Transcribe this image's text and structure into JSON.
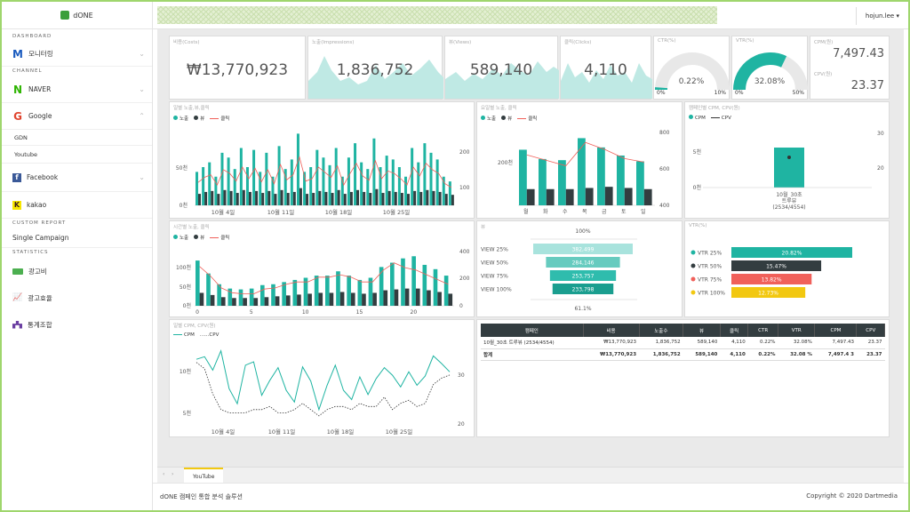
{
  "app": {
    "logo": "dONE",
    "user": "hojun.lee"
  },
  "sidebar": {
    "sections": {
      "dashboard": "DASHBOARD",
      "channel": "CHANNEL",
      "custom": "CUSTOM REPORT",
      "statistics": "STATISTICS"
    },
    "monitoring": "모니터링",
    "naver": "NAVER",
    "google": "Google",
    "gdn": "GDN",
    "youtube": "Youtube",
    "facebook": "Facebook",
    "kakao": "kakao",
    "single": "Single Campaign",
    "ad_cost": "광고비",
    "ad_eff": "광고효율",
    "stats": "통계조합"
  },
  "kpi": {
    "cost": {
      "title": "비용(Costs)",
      "value": "₩13,770,923"
    },
    "impr": {
      "title": "노출(Impressions)",
      "value": "1,836,752"
    },
    "views": {
      "title": "뷰(Views)",
      "value": "589,140"
    },
    "clicks": {
      "title": "클릭(Clicks)",
      "value": "4,110"
    },
    "ctr": {
      "title": "CTR(%)",
      "value": "0.22%",
      "min": "0%",
      "max": "10%",
      "level_pct": 0.22,
      "level_max": 10
    },
    "vtr": {
      "title": "VTR(%)",
      "value": "32.08%",
      "min": "0%",
      "max": "50%",
      "level_pct": 32.08,
      "level_max": 50
    },
    "cpm": {
      "title": "CPM(원)",
      "value": "7,497.43",
      "cpv_title": "CPV(원)",
      "cpv_value": "23.37"
    }
  },
  "legend": {
    "impr": "노출",
    "view": "뷰",
    "click": "클릭",
    "cpm": "CPM",
    "cpv": "CPV",
    "dots": "......"
  },
  "charts": {
    "daily_title": "일별 노출,뷰,클릭",
    "dow_title": "요일별 노출, 클릭",
    "campaign_title": "캠페인별 CPM, CPV(원)",
    "hourly_title": "시간별 노출, 클릭",
    "funnel_title": "뷰",
    "vtr_title": "VTR(%)",
    "daily_cpm_title": "일별 CPM, CPV(원)"
  },
  "chart_data": [
    {
      "type": "bar",
      "title": "일별 노출,뷰,클릭",
      "categories_label": [
        "10월 4일",
        "10월 11일",
        "10월 18일",
        "10월 25일"
      ],
      "yleft_ticks": [
        "0천",
        "50천"
      ],
      "yright_ticks": [
        "100",
        "200"
      ],
      "series": [
        {
          "name": "노출",
          "values": [
            35,
            40,
            45,
            30,
            55,
            50,
            38,
            60,
            40,
            58,
            35,
            55,
            30,
            62,
            38,
            48,
            75,
            35,
            40,
            58,
            50,
            42,
            60,
            30,
            50,
            65,
            45,
            38,
            70,
            40,
            52,
            48,
            40,
            30,
            60,
            45,
            65,
            55,
            48,
            30,
            25
          ]
        },
        {
          "name": "뷰",
          "values": [
            12,
            14,
            15,
            12,
            16,
            15,
            13,
            16,
            14,
            15,
            13,
            15,
            12,
            16,
            13,
            14,
            18,
            12,
            13,
            15,
            14,
            13,
            16,
            12,
            14,
            16,
            14,
            13,
            17,
            13,
            15,
            14,
            13,
            12,
            15,
            14,
            16,
            15,
            14,
            12,
            11
          ]
        },
        {
          "name": "클릭",
          "values": [
            90,
            110,
            120,
            80,
            140,
            125,
            95,
            150,
            105,
            145,
            92,
            140,
            85,
            160,
            100,
            120,
            190,
            95,
            105,
            150,
            130,
            110,
            155,
            80,
            125,
            165,
            115,
            98,
            175,
            105,
            135,
            125,
            105,
            80,
            150,
            115,
            165,
            140,
            125,
            85,
            70
          ]
        }
      ]
    },
    {
      "type": "bar",
      "title": "요일별 노출, 클릭",
      "categories": [
        "월",
        "화",
        "수",
        "목",
        "금",
        "토",
        "일"
      ],
      "yleft_ticks": [
        "200천"
      ],
      "yright_ticks": [
        "400",
        "600",
        "800"
      ],
      "series": [
        {
          "name": "노출",
          "values": [
            240,
            200,
            195,
            290,
            250,
            215,
            190
          ]
        },
        {
          "name": "뷰",
          "values": [
            70,
            70,
            70,
            75,
            80,
            75,
            70
          ]
        },
        {
          "name": "클릭",
          "values": [
            560,
            500,
            440,
            700,
            620,
            520,
            480
          ]
        }
      ]
    },
    {
      "type": "bar",
      "title": "캠페인별 CPM, CPV(원)",
      "categories": [
        "10월_30초 트루뷰 (2534/4554)"
      ],
      "category_lines": [
        "10월_30초",
        "트루뷰",
        "(2534/4554)"
      ],
      "yleft_ticks": [
        "0천",
        "5천"
      ],
      "yright_ticks": [
        "20",
        "30"
      ],
      "series": [
        {
          "name": "CPM",
          "values": [
            7497.43
          ]
        },
        {
          "name": "CPV",
          "values": [
            23.37
          ]
        }
      ]
    },
    {
      "type": "bar",
      "title": "시간별 노출, 클릭",
      "x_ticks": [
        "0",
        "5",
        "10",
        "15",
        "20"
      ],
      "yleft_ticks": [
        "0천",
        "50천",
        "100천"
      ],
      "yright_ticks": [
        "0",
        "200",
        "400"
      ],
      "series": [
        {
          "name": "노출",
          "values": [
            105,
            75,
            50,
            40,
            38,
            40,
            48,
            50,
            55,
            60,
            65,
            70,
            70,
            80,
            70,
            60,
            65,
            90,
            100,
            110,
            115,
            95,
            85,
            70
          ]
        },
        {
          "name": "뷰",
          "values": [
            30,
            25,
            20,
            18,
            18,
            18,
            20,
            22,
            24,
            26,
            28,
            30,
            30,
            32,
            30,
            28,
            30,
            36,
            38,
            40,
            40,
            36,
            32,
            28
          ]
        },
        {
          "name": "클릭",
          "values": [
            330,
            250,
            150,
            110,
            100,
            100,
            140,
            150,
            180,
            200,
            200,
            240,
            240,
            260,
            240,
            200,
            200,
            300,
            360,
            320,
            300,
            260,
            220,
            180
          ]
        }
      ]
    },
    {
      "type": "bar",
      "title": "뷰",
      "top_label": "100%",
      "bottom_label": "61.1%",
      "categories": [
        "VIEW 25%",
        "VIEW 50%",
        "VIEW 75%",
        "VIEW 100%"
      ],
      "values": [
        382499,
        284146,
        253757,
        233798
      ],
      "value_labels": [
        "382,499",
        "284,146",
        "253,757",
        "233,798"
      ]
    },
    {
      "type": "bar",
      "title": "VTR(%)",
      "categories": [
        "VTR 25%",
        "VTR 50%",
        "VTR 75%",
        "VTR 100%"
      ],
      "values": [
        20.82,
        15.47,
        13.82,
        12.73
      ],
      "value_labels": [
        "20.82%",
        "15.47%",
        "13.82%",
        "12.73%"
      ],
      "colors": [
        "#1fb4a2",
        "#333d40",
        "#f0605a",
        "#f2c811"
      ]
    },
    {
      "type": "line",
      "title": "일별 CPM, CPV(원)",
      "categories_label": [
        "10월 4일",
        "10월 11일",
        "10월 18일",
        "10월 25일"
      ],
      "yleft_ticks": [
        "5천",
        "10천"
      ],
      "yright_ticks": [
        "20",
        "30"
      ],
      "series": [
        {
          "name": "CPM",
          "values": [
            10.5,
            10.8,
            9.2,
            11.5,
            7.0,
            5.2,
            9.8,
            10.2,
            6.2,
            8.0,
            9.5,
            6.8,
            5.4,
            9.6,
            7.9,
            4.5,
            7.4,
            9.8,
            6.8,
            5.7,
            8.4,
            6.3,
            8.2,
            9.5,
            8.6,
            7.2,
            9.0,
            7.4,
            8.5,
            10.9,
            10.0,
            9.0
          ]
        },
        {
          "name": "CPV",
          "values": [
            28.5,
            27.5,
            23.5,
            21,
            20.5,
            20.5,
            20.5,
            21,
            21,
            21.5,
            20.5,
            20.5,
            21,
            22,
            21,
            20,
            21,
            21.5,
            21.5,
            21,
            22,
            21.5,
            21.5,
            23,
            21,
            22,
            22.5,
            21.5,
            22,
            25,
            26,
            26.5
          ]
        }
      ]
    }
  ],
  "table": {
    "headers": [
      "캠페인",
      "비용",
      "노출수",
      "뷰",
      "클릭",
      "CTR",
      "VTR",
      "CPM",
      "CPV"
    ],
    "rows": [
      [
        "10월_30초 트루뷰 (2534/4554)",
        "₩13,770,923",
        "1,836,752",
        "589,140",
        "4,110",
        "0.22%",
        "32.08%",
        "7,497.43",
        "23.37"
      ]
    ],
    "total": [
      "합계",
      "₩13,770,923",
      "1,836,752",
      "589,140",
      "4,110",
      "0.22%",
      "32.08 %",
      "7,497.4 3",
      "23.37"
    ]
  },
  "tabs": {
    "active": "YouTube"
  },
  "footer": {
    "left": "dONE 캠페인 통합 분석 솔루션",
    "right": "Copyright © 2020 Dartmedia"
  },
  "colors": {
    "teal": "#1fb4a2",
    "dark": "#333d40",
    "red": "#f0605a",
    "yellow": "#f2c811",
    "green_border": "#9fd66d"
  }
}
